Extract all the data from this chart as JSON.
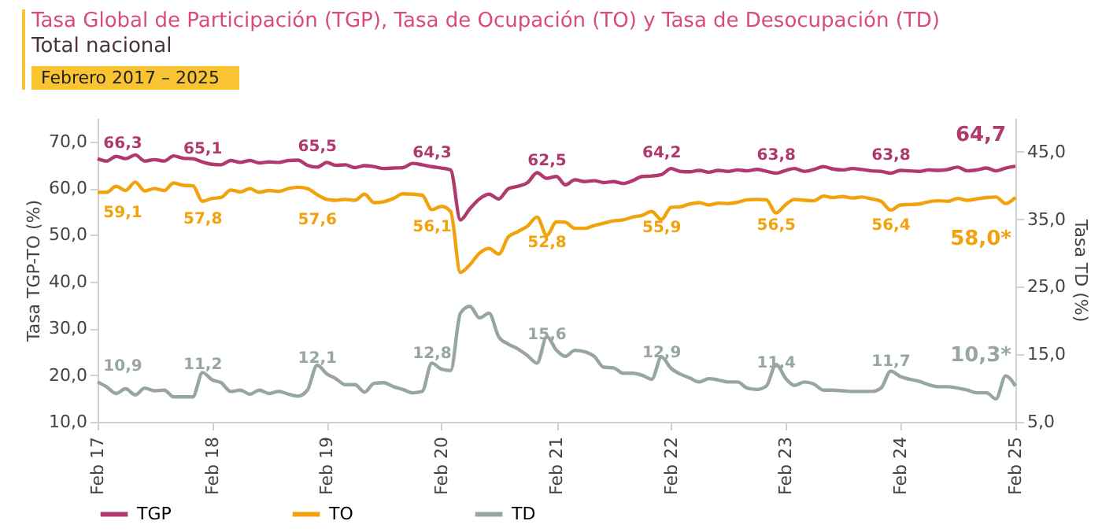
{
  "chart_data": {
    "type": "line",
    "title": "Tasa Global de Participación (TGP), Tasa de Ocupación (TO) y Tasa de Desocupación (TD)",
    "subtitle": "Total nacional",
    "annotations": [
      "Febrero 2017 – 2025"
    ],
    "ylabel": "Tasa TGP-TO (%)",
    "y2label": "Tasa TD (%)",
    "x": [
      "2017-02",
      "2017-03",
      "2017-04",
      "2017-05",
      "2017-06",
      "2017-07",
      "2017-08",
      "2017-09",
      "2017-10",
      "2017-11",
      "2017-12",
      "2018-01",
      "2018-02",
      "2018-03",
      "2018-04",
      "2018-05",
      "2018-06",
      "2018-07",
      "2018-08",
      "2018-09",
      "2018-10",
      "2018-11",
      "2018-12",
      "2019-01",
      "2019-02",
      "2019-03",
      "2019-04",
      "2019-05",
      "2019-06",
      "2019-07",
      "2019-08",
      "2019-09",
      "2019-10",
      "2019-11",
      "2019-12",
      "2020-01",
      "2020-02",
      "2020-03",
      "2020-04",
      "2020-05",
      "2020-06",
      "2020-07",
      "2020-08",
      "2020-09",
      "2020-10",
      "2020-11",
      "2020-12",
      "2021-01",
      "2021-02",
      "2021-03",
      "2021-04",
      "2021-05",
      "2021-06",
      "2021-07",
      "2021-08",
      "2021-09",
      "2021-10",
      "2021-11",
      "2021-12",
      "2022-01",
      "2022-02",
      "2022-03",
      "2022-04",
      "2022-05",
      "2022-06",
      "2022-07",
      "2022-08",
      "2022-09",
      "2022-10",
      "2022-11",
      "2022-12",
      "2023-01",
      "2023-02",
      "2023-03",
      "2023-04",
      "2023-05",
      "2023-06",
      "2023-07",
      "2023-08",
      "2023-09",
      "2023-10",
      "2023-11",
      "2023-12",
      "2024-01",
      "2024-02",
      "2024-03",
      "2024-04",
      "2024-05",
      "2024-06",
      "2024-07",
      "2024-08",
      "2024-09",
      "2024-10",
      "2024-11",
      "2024-12",
      "2025-01",
      "2025-02"
    ],
    "xlim": [
      "2017-02",
      "2025-02"
    ],
    "xticks": [
      {
        "value": "2017-02",
        "label": "Feb 17"
      },
      {
        "value": "2018-02",
        "label": "Feb 18"
      },
      {
        "value": "2019-02",
        "label": "Feb 19"
      },
      {
        "value": "2020-02",
        "label": "Feb 20"
      },
      {
        "value": "2021-02",
        "label": "Feb 21"
      },
      {
        "value": "2022-02",
        "label": "Feb 22"
      },
      {
        "value": "2023-02",
        "label": "Feb 23"
      },
      {
        "value": "2024-02",
        "label": "Feb 24"
      },
      {
        "value": "2025-02",
        "label": "Feb 25"
      }
    ],
    "ylim": [
      10,
      75
    ],
    "yticks": [
      {
        "value": 10,
        "label": "10,0"
      },
      {
        "value": 20,
        "label": "20,0"
      },
      {
        "value": 30,
        "label": "30,0"
      },
      {
        "value": 40,
        "label": "40,0"
      },
      {
        "value": 50,
        "label": "50,0"
      },
      {
        "value": 60,
        "label": "60,0"
      },
      {
        "value": 70,
        "label": "70,0"
      }
    ],
    "y2lim": [
      5,
      50
    ],
    "y2ticks": [
      {
        "value": 5,
        "label": "5,0"
      },
      {
        "value": 15,
        "label": "15,0"
      },
      {
        "value": 25,
        "label": "25,0"
      },
      {
        "value": 35,
        "label": "35,0"
      },
      {
        "value": 45,
        "label": "45,0"
      }
    ],
    "legend": "bottom",
    "grid": false,
    "series": [
      {
        "name": "TGP",
        "color": "#b03a6e",
        "values": [
          66.3,
          65.8,
          66.8,
          66.3,
          67.1,
          65.8,
          66.1,
          65.8,
          66.9,
          66.4,
          66.3,
          65.6,
          65.1,
          65.0,
          65.9,
          65.5,
          65.9,
          65.4,
          65.6,
          65.5,
          65.9,
          66.0,
          64.9,
          64.5,
          65.5,
          64.9,
          65.0,
          64.4,
          64.8,
          64.6,
          64.2,
          64.3,
          64.4,
          65.3,
          65.0,
          64.6,
          64.3,
          63.9,
          53.2,
          55.6,
          57.7,
          58.7,
          57.7,
          59.9,
          60.4,
          61.2,
          63.3,
          62.1,
          62.5,
          60.7,
          61.8,
          61.4,
          61.6,
          61.2,
          61.4,
          61.0,
          61.6,
          62.5,
          62.6,
          62.9,
          64.2,
          63.6,
          63.5,
          63.8,
          63.4,
          63.8,
          63.6,
          63.9,
          63.7,
          64.0,
          63.6,
          63.2,
          63.8,
          64.2,
          63.6,
          64.0,
          64.6,
          64.1,
          63.9,
          64.2,
          64.0,
          63.7,
          63.6,
          63.2,
          63.8,
          63.7,
          63.6,
          63.9,
          63.8,
          64.0,
          64.5,
          63.7,
          63.9,
          64.3,
          63.7,
          64.3,
          64.7
        ],
        "value_labels": [
          "66,3",
          null,
          null,
          null,
          null,
          null,
          null,
          null,
          null,
          null,
          null,
          null,
          "65,1",
          null,
          null,
          null,
          null,
          null,
          null,
          null,
          null,
          null,
          null,
          null,
          "65,5",
          null,
          null,
          null,
          null,
          null,
          null,
          null,
          null,
          null,
          null,
          null,
          "64,3",
          null,
          null,
          null,
          null,
          null,
          null,
          null,
          null,
          null,
          null,
          null,
          "62,5",
          null,
          null,
          null,
          null,
          null,
          null,
          null,
          null,
          null,
          null,
          null,
          "64,2",
          null,
          null,
          null,
          null,
          null,
          null,
          null,
          null,
          null,
          null,
          null,
          "63,8",
          null,
          null,
          null,
          null,
          null,
          null,
          null,
          null,
          null,
          null,
          null,
          "63,8",
          null,
          null,
          null,
          null,
          null,
          null,
          null,
          null,
          null,
          null,
          null,
          "64,7"
        ]
      },
      {
        "name": "TO",
        "color": "#f2a20c",
        "values": [
          59.1,
          59.1,
          60.4,
          59.5,
          61.3,
          59.4,
          59.9,
          59.5,
          61.1,
          60.6,
          60.5,
          57.2,
          57.8,
          58.0,
          59.6,
          59.2,
          59.9,
          59.1,
          59.5,
          59.3,
          59.9,
          60.2,
          59.9,
          58.6,
          57.6,
          57.4,
          57.6,
          57.4,
          58.7,
          56.9,
          57.1,
          57.8,
          58.8,
          58.7,
          58.5,
          55.4,
          56.1,
          55.0,
          42.0,
          43.6,
          46.1,
          47.1,
          45.9,
          49.6,
          50.7,
          51.9,
          53.8,
          49.9,
          52.8,
          52.7,
          51.4,
          51.4,
          52.0,
          52.5,
          53.0,
          53.2,
          53.8,
          54.2,
          55.0,
          53.3,
          55.9,
          56.0,
          56.6,
          56.9,
          56.4,
          56.8,
          56.7,
          57.0,
          57.5,
          57.6,
          57.5,
          54.7,
          56.5,
          57.6,
          57.4,
          57.3,
          58.3,
          58.0,
          58.2,
          57.9,
          58.1,
          57.7,
          57.2,
          55.3,
          56.4,
          56.5,
          56.6,
          57.1,
          57.3,
          57.2,
          57.8,
          57.4,
          57.7,
          58.0,
          58.1,
          56.7,
          58.0
        ],
        "value_labels": [
          "59,1",
          null,
          null,
          null,
          null,
          null,
          null,
          null,
          null,
          null,
          null,
          null,
          "57,8",
          null,
          null,
          null,
          null,
          null,
          null,
          null,
          null,
          null,
          null,
          null,
          "57,6",
          null,
          null,
          null,
          null,
          null,
          null,
          null,
          null,
          null,
          null,
          null,
          "56,1",
          null,
          null,
          null,
          null,
          null,
          null,
          null,
          null,
          null,
          null,
          null,
          "52,8",
          null,
          null,
          null,
          null,
          null,
          null,
          null,
          null,
          null,
          null,
          null,
          "55,9",
          null,
          null,
          null,
          null,
          null,
          null,
          null,
          null,
          null,
          null,
          null,
          "56,5",
          null,
          null,
          null,
          null,
          null,
          null,
          null,
          null,
          null,
          null,
          null,
          "56,4",
          null,
          null,
          null,
          null,
          null,
          null,
          null,
          null,
          null,
          null,
          null,
          "58,0*"
        ]
      },
      {
        "name": "TD",
        "color": "#97a6a4",
        "axis": "y2",
        "values": [
          10.9,
          10.2,
          9.2,
          9.9,
          9.0,
          10.0,
          9.6,
          9.7,
          8.7,
          8.7,
          8.7,
          12.3,
          11.2,
          10.8,
          9.5,
          9.7,
          9.1,
          9.7,
          9.2,
          9.5,
          9.1,
          8.8,
          9.7,
          13.4,
          12.1,
          11.4,
          10.5,
          10.5,
          9.4,
          10.7,
          10.8,
          10.2,
          9.8,
          9.3,
          9.5,
          13.7,
          12.8,
          12.6,
          21.1,
          22.1,
          20.4,
          21.1,
          17.6,
          16.5,
          15.8,
          14.8,
          13.7,
          17.6,
          15.6,
          14.7,
          15.6,
          15.4,
          14.7,
          13.1,
          13.0,
          12.2,
          12.2,
          11.9,
          11.3,
          14.6,
          12.9,
          12.1,
          11.5,
          10.9,
          11.4,
          11.2,
          10.9,
          10.9,
          10.0,
          9.8,
          10.3,
          13.5,
          11.4,
          10.4,
          10.9,
          10.6,
          9.7,
          9.7,
          9.6,
          9.5,
          9.5,
          9.5,
          10.0,
          12.5,
          11.7,
          11.3,
          11.0,
          10.5,
          10.2,
          10.2,
          10.0,
          9.7,
          9.3,
          9.3,
          8.4,
          11.8,
          10.3
        ],
        "value_labels": [
          "10,9",
          null,
          null,
          null,
          null,
          null,
          null,
          null,
          null,
          null,
          null,
          null,
          "11,2",
          null,
          null,
          null,
          null,
          null,
          null,
          null,
          null,
          null,
          null,
          null,
          "12,1",
          null,
          null,
          null,
          null,
          null,
          null,
          null,
          null,
          null,
          null,
          null,
          "12,8",
          null,
          null,
          null,
          null,
          null,
          null,
          null,
          null,
          null,
          null,
          null,
          "15,6",
          null,
          null,
          null,
          null,
          null,
          null,
          null,
          null,
          null,
          null,
          null,
          "12,9",
          null,
          null,
          null,
          null,
          null,
          null,
          null,
          null,
          null,
          null,
          null,
          "11,4",
          null,
          null,
          null,
          null,
          null,
          null,
          null,
          null,
          null,
          null,
          null,
          "11,7",
          null,
          null,
          null,
          null,
          null,
          null,
          null,
          null,
          null,
          null,
          null,
          "10,3*"
        ]
      }
    ]
  }
}
